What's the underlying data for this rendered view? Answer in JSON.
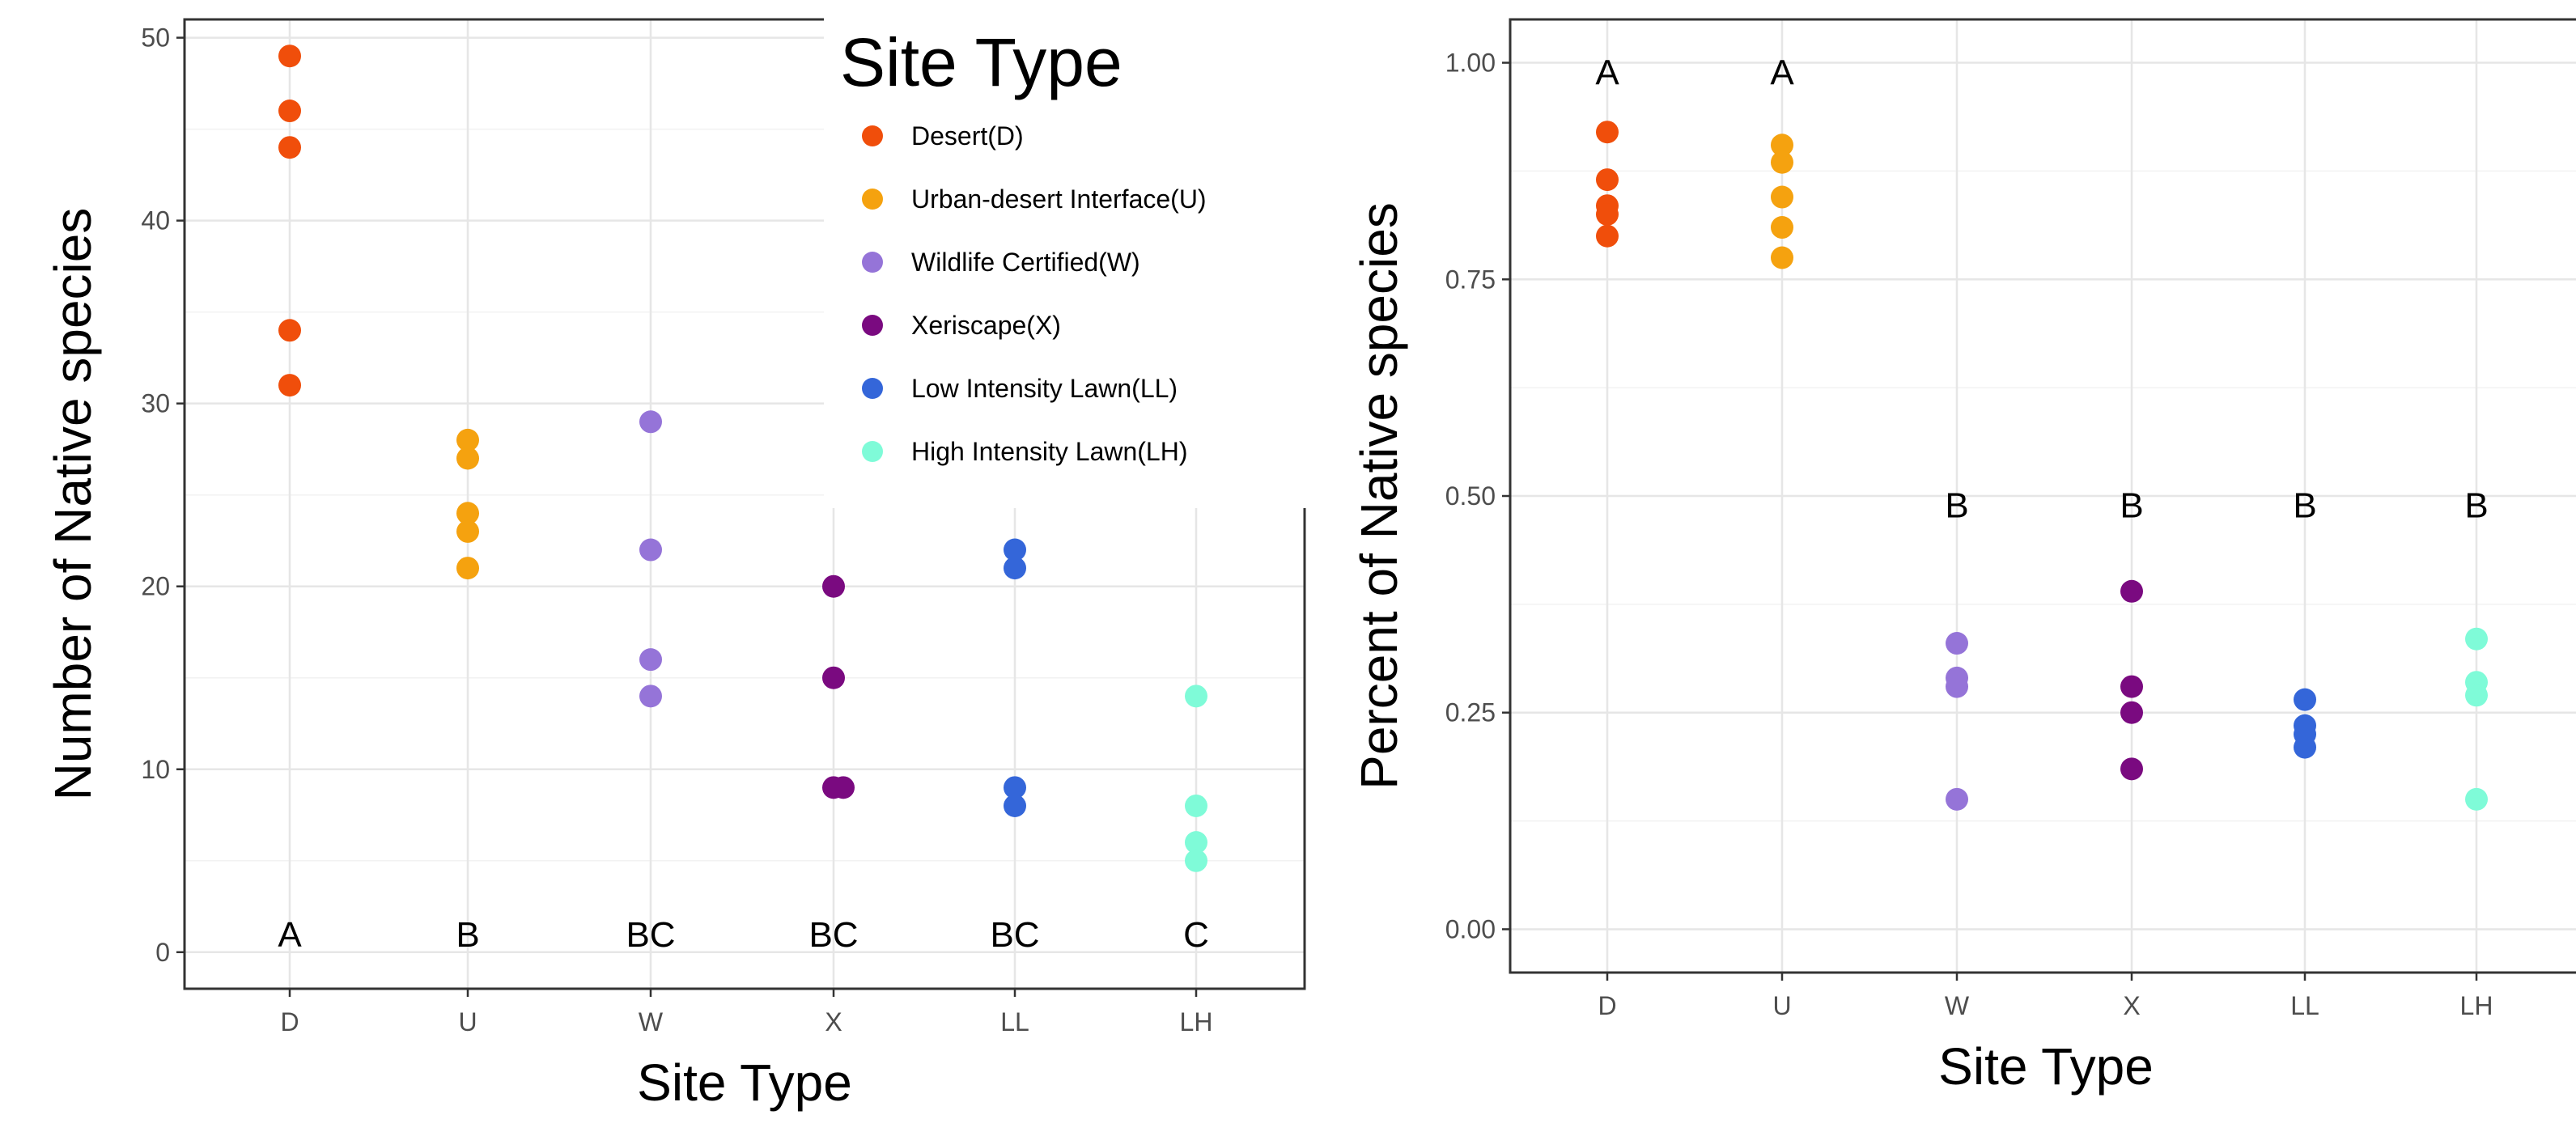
{
  "chart_data": [
    {
      "type": "scatter",
      "xlabel": "Site Type",
      "ylabel": "Number of Native species",
      "categories": [
        "D",
        "U",
        "W",
        "X",
        "LL",
        "LH"
      ],
      "ylim": [
        -2,
        51
      ],
      "yticks": [
        "0",
        "10",
        "20",
        "30",
        "40",
        "50"
      ],
      "grid": true,
      "legend": {
        "title": "Site Type",
        "placement": "top-right",
        "items": [
          {
            "label": "Desert(D)",
            "color": "#F04E0B"
          },
          {
            "label": "Urban-desert Interface(U)",
            "color": "#F5A20F"
          },
          {
            "label": "Wildlife Certified(W)",
            "color": "#9574D8"
          },
          {
            "label": "Xeriscape(X)",
            "color": "#7A0A80"
          },
          {
            "label": "Low Intensity Lawn(LL)",
            "color": "#3466D9"
          },
          {
            "label": "High Intensity Lawn(LH)",
            "color": "#7FFBD8"
          }
        ]
      },
      "series": [
        {
          "category": "D",
          "color": "#F04E0B",
          "values": [
            49,
            46,
            44,
            34,
            31
          ]
        },
        {
          "category": "U",
          "color": "#F5A20F",
          "values": [
            28,
            27,
            24,
            23,
            21
          ]
        },
        {
          "category": "W",
          "color": "#9574D8",
          "values": [
            29,
            22,
            16,
            14
          ]
        },
        {
          "category": "X",
          "color": "#7A0A80",
          "values": [
            20,
            15,
            9,
            9
          ]
        },
        {
          "category": "LL",
          "color": "#3466D9",
          "values": [
            22,
            21,
            9,
            8
          ]
        },
        {
          "category": "LH",
          "color": "#7FFBD8",
          "values": [
            14,
            8,
            6,
            5
          ]
        }
      ],
      "annotations": [
        {
          "category": "D",
          "text": "A",
          "y": 1
        },
        {
          "category": "U",
          "text": "B",
          "y": 1
        },
        {
          "category": "W",
          "text": "BC",
          "y": 1
        },
        {
          "category": "X",
          "text": "BC",
          "y": 1
        },
        {
          "category": "LL",
          "text": "BC",
          "y": 1
        },
        {
          "category": "LH",
          "text": "C",
          "y": 1
        }
      ]
    },
    {
      "type": "scatter",
      "xlabel": "Site Type",
      "ylabel": "Percent of Native species",
      "categories": [
        "D",
        "U",
        "W",
        "X",
        "LL",
        "LH"
      ],
      "ylim": [
        -0.05,
        1.05
      ],
      "yticks": [
        "0.00",
        "0.25",
        "0.50",
        "0.75",
        "1.00"
      ],
      "grid": true,
      "series": [
        {
          "category": "D",
          "color": "#F04E0B",
          "values": [
            0.92,
            0.865,
            0.835,
            0.825,
            0.8
          ]
        },
        {
          "category": "U",
          "color": "#F5A20F",
          "values": [
            0.905,
            0.885,
            0.845,
            0.81,
            0.775
          ]
        },
        {
          "category": "W",
          "color": "#9574D8",
          "values": [
            0.33,
            0.29,
            0.28,
            0.15
          ]
        },
        {
          "category": "X",
          "color": "#7A0A80",
          "values": [
            0.39,
            0.28,
            0.25,
            0.185
          ]
        },
        {
          "category": "LL",
          "color": "#3466D9",
          "values": [
            0.265,
            0.235,
            0.225,
            0.21
          ]
        },
        {
          "category": "LH",
          "color": "#7FFBD8",
          "values": [
            0.335,
            0.285,
            0.27,
            0.15
          ]
        }
      ],
      "annotations": [
        {
          "category": "D",
          "text": "A",
          "y": 0.99
        },
        {
          "category": "U",
          "text": "A",
          "y": 0.99
        },
        {
          "category": "W",
          "text": "B",
          "y": 0.49
        },
        {
          "category": "X",
          "text": "B",
          "y": 0.49
        },
        {
          "category": "LL",
          "text": "B",
          "y": 0.49
        },
        {
          "category": "LH",
          "text": "B",
          "y": 0.49
        }
      ]
    }
  ]
}
